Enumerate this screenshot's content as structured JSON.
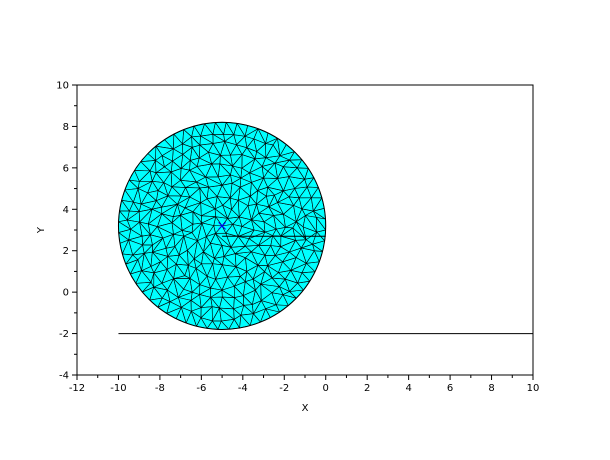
{
  "chart_data": {
    "type": "scatter",
    "title": "",
    "xlabel": "X",
    "ylabel": "Y",
    "xlim": [
      -12,
      10
    ],
    "ylim": [
      -4,
      10
    ],
    "x_ticks": [
      -12,
      -10,
      -8,
      -6,
      -4,
      -2,
      0,
      2,
      4,
      6,
      8,
      10
    ],
    "y_ticks": [
      -4,
      -2,
      0,
      2,
      4,
      6,
      8,
      10
    ],
    "grid": false,
    "mesh": {
      "shape": "disk",
      "center": [
        -5,
        3.2
      ],
      "radius": 5,
      "fill_color": "#00ffff",
      "edge_color": "#000000",
      "ring_counts": [
        6,
        12,
        18,
        24,
        30,
        36,
        42,
        48,
        54,
        60
      ]
    },
    "lines": [
      {
        "x": [
          -10,
          10
        ],
        "y": [
          -2,
          -2
        ],
        "color": "#000000"
      },
      {
        "x": [
          -5,
          0
        ],
        "y": [
          2.7,
          2.7
        ],
        "color": "#000000"
      }
    ],
    "markers": [
      {
        "x": -5,
        "y": 3.2,
        "symbol": "x",
        "color": "#0000ff"
      }
    ]
  }
}
